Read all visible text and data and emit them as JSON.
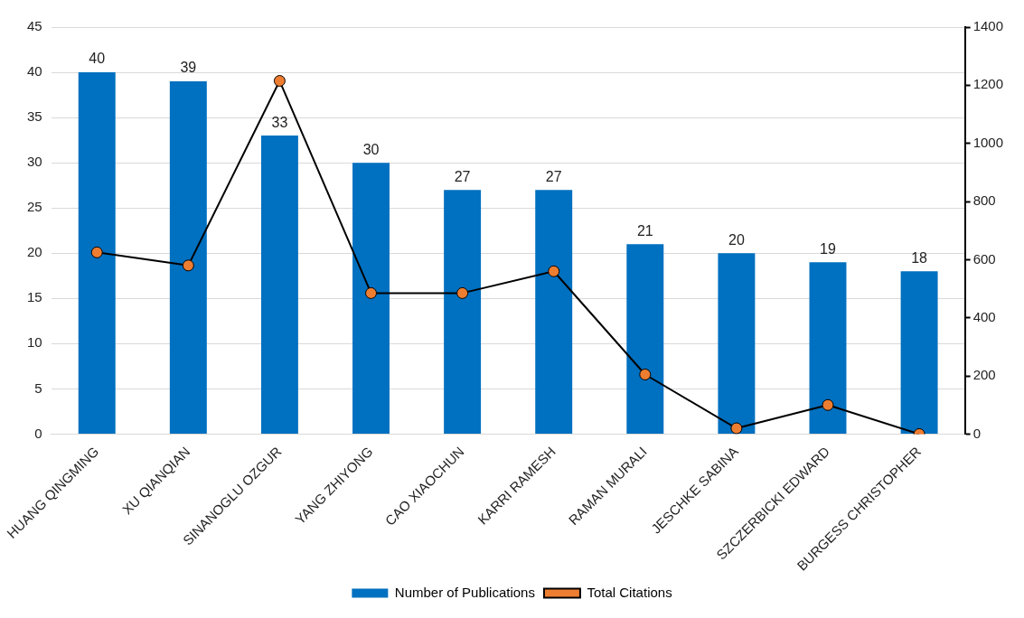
{
  "chart_data": {
    "type": "bar",
    "categories": [
      "HUANG QINGMING",
      "XU QIANQIAN",
      "SINANOGLU OZGUR",
      "YANG ZHIYONG",
      "CAO XIAOCHUN",
      "KARRI RAMESH",
      "RAMAN MURALI",
      "JESCHKE SABINA",
      "SZCZERBICKI EDWARD",
      "BURGESS CHRISTOPHER"
    ],
    "series": [
      {
        "name": "Number of Publications",
        "color": "#0070c0",
        "values": [
          40,
          39,
          33,
          30,
          27,
          27,
          21,
          20,
          19,
          18
        ],
        "value_labels": [
          "40",
          "39",
          "33",
          "30",
          "27",
          "27",
          "21",
          "20",
          "19",
          "18"
        ]
      },
      {
        "name": "Total Citations",
        "type": "line",
        "axis": "y2",
        "color": "#ed7d31",
        "marker": "circle",
        "values": [
          625,
          580,
          1215,
          485,
          485,
          560,
          205,
          20,
          100,
          0
        ]
      }
    ],
    "ylim": [
      0,
      45
    ],
    "yticks": [
      0,
      5,
      10,
      15,
      20,
      25,
      30,
      35,
      40,
      45
    ],
    "y2lim": [
      0,
      1400
    ],
    "y2ticks": [
      0,
      200,
      400,
      600,
      800,
      1000,
      1200,
      1400
    ],
    "grid": "y",
    "legend": "bottom"
  }
}
